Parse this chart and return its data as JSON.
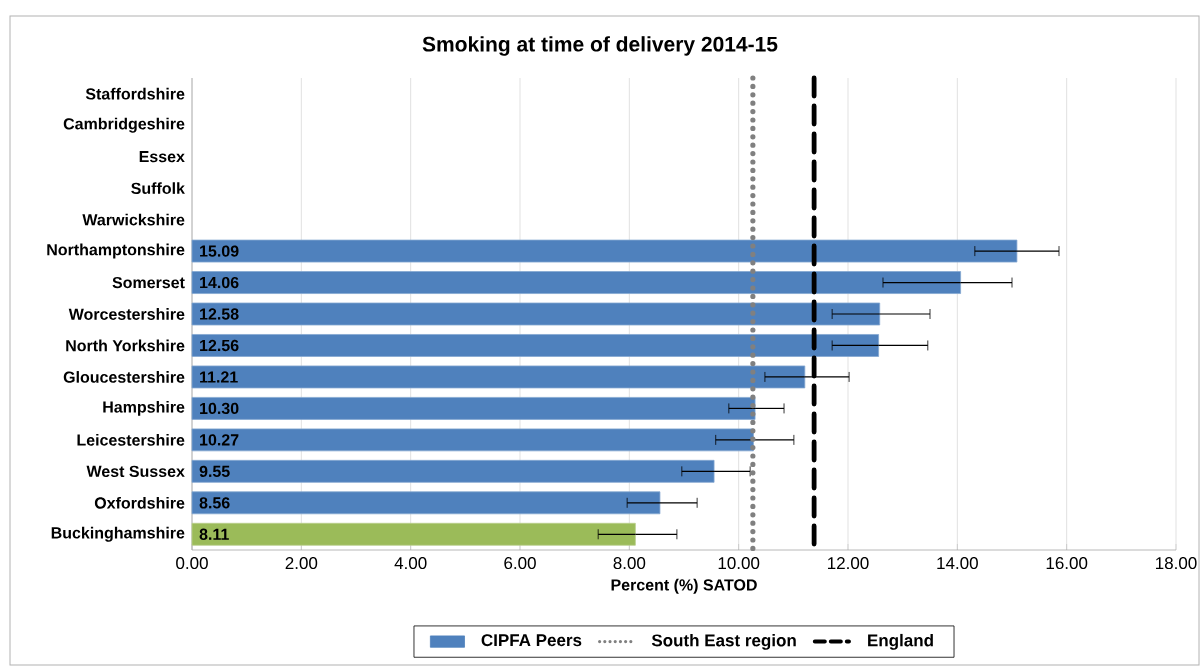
{
  "chart_data": {
    "type": "bar",
    "orientation": "horizontal",
    "title": "Smoking at time of delivery 2014-15",
    "xlabel": "Percent (%) SATOD",
    "categories": [
      "Staffordshire",
      "Cambridgeshire",
      "Essex",
      "Suffolk",
      "Warwickshire",
      "Northamptonshire",
      "Somerset",
      "Worcestershire",
      "North Yorkshire",
      "Gloucestershire",
      "Hampshire",
      "Leicestershire",
      "West Sussex",
      "Oxfordshire",
      "Buckinghamshire"
    ],
    "series": [
      {
        "name": "CIPFA Peers",
        "color": "#4f81bd",
        "colors": [
          "#4f81bd",
          "#4f81bd",
          "#4f81bd",
          "#4f81bd",
          "#4f81bd",
          "#4f81bd",
          "#4f81bd",
          "#4f81bd",
          "#4f81bd",
          "#4f81bd",
          "#4f81bd",
          "#4f81bd",
          "#4f81bd",
          "#4f81bd",
          "#9bbb59"
        ],
        "values": [
          null,
          null,
          null,
          null,
          null,
          15.09,
          14.06,
          12.58,
          12.56,
          11.21,
          10.3,
          10.27,
          9.55,
          8.56,
          8.11
        ],
        "value_labels": [
          null,
          null,
          null,
          null,
          null,
          "15.09",
          "14.06",
          "12.58",
          "12.56",
          "11.21",
          "10.30",
          "10.27",
          "9.55",
          "8.56",
          "8.11"
        ],
        "errors": [
          null,
          null,
          null,
          null,
          null,
          [
            14.32,
            15.86
          ],
          [
            12.64,
            15.0
          ],
          [
            11.71,
            13.5
          ],
          [
            11.71,
            13.46
          ],
          [
            10.48,
            12.02
          ],
          [
            9.82,
            10.83
          ],
          [
            9.58,
            11.01
          ],
          [
            8.96,
            10.21
          ],
          [
            7.96,
            9.24
          ],
          [
            7.43,
            8.87
          ]
        ]
      }
    ],
    "ref_lines": [
      {
        "axis": "x",
        "value": 10.26,
        "label": "South East region",
        "color": "#808080",
        "line_style": "dotted"
      },
      {
        "axis": "x",
        "value": 11.38,
        "label": "England",
        "color": "#000000",
        "line_style": "dashed"
      }
    ],
    "xlim": [
      0,
      18
    ],
    "xticks": [
      {
        "value": 0,
        "label": "0.00"
      },
      {
        "value": 2,
        "label": "2.00"
      },
      {
        "value": 4,
        "label": "4.00"
      },
      {
        "value": 6,
        "label": "6.00"
      },
      {
        "value": 8,
        "label": "8.00"
      },
      {
        "value": 10,
        "label": "10.00"
      },
      {
        "value": 12,
        "label": "12.00"
      },
      {
        "value": 14,
        "label": "14.00"
      },
      {
        "value": 16,
        "label": "16.00"
      },
      {
        "value": 18,
        "label": "18.00"
      }
    ],
    "grid": "x",
    "legend": "bottom"
  }
}
